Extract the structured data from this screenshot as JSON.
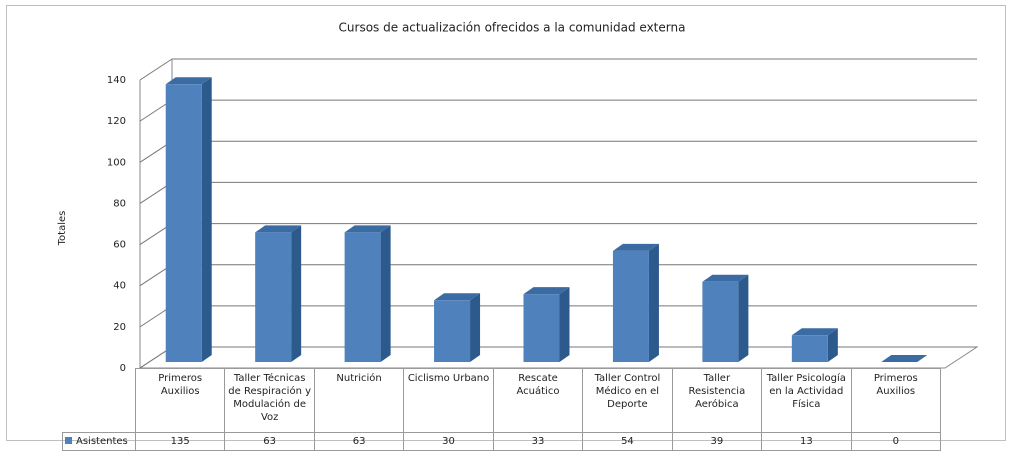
{
  "chart_data": {
    "type": "bar3d",
    "title": "Cursos de actualización ofrecidos a la comunidad externa",
    "y_label": "Totales",
    "categories": [
      "Primeros Auxilios",
      "Taller Técnicas de Respiración y Modulación de Voz",
      "Nutrición",
      "Ciclismo Urbano",
      "Rescate Acuático",
      "Taller Control Médico en el Deporte",
      "Taller Resistencia Aeróbica",
      "Taller Psicología en la Actividad Física",
      "Primeros Auxilios"
    ],
    "series": [
      {
        "name": "Asistentes",
        "color": "#4f81bd",
        "values": [
          135,
          63,
          63,
          30,
          33,
          54,
          39,
          13,
          0
        ]
      }
    ],
    "ylim": [
      0,
      140
    ],
    "yticks": [
      0,
      20,
      40,
      60,
      80,
      100,
      120,
      140
    ],
    "grid": true,
    "data_table": true
  }
}
